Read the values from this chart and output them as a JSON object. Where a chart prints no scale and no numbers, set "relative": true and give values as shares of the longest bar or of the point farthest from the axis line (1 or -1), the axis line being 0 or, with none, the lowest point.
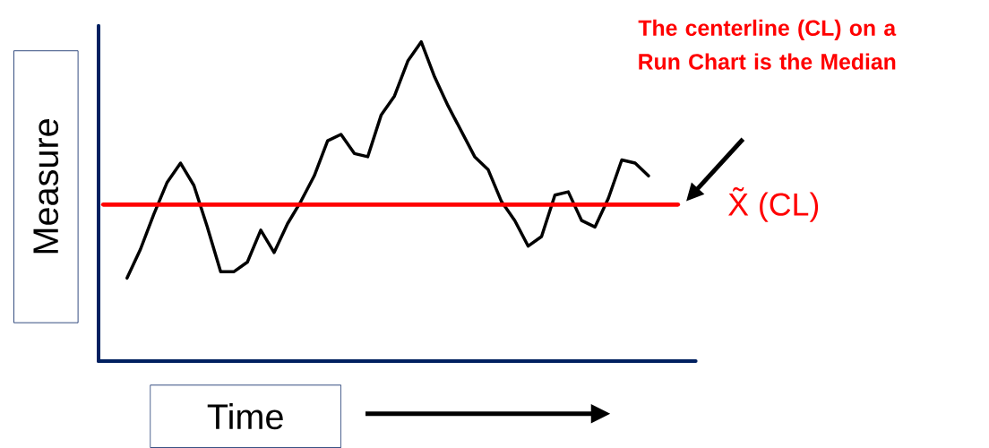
{
  "chart_data": {
    "type": "line",
    "relative": true,
    "xlabel": "Time",
    "ylabel": "Measure",
    "annotations": [
      "The centerline (CL) on a Run Chart is the Median"
    ],
    "categories": [
      null,
      null,
      null,
      null,
      null,
      null,
      null,
      null,
      null,
      null,
      null,
      null,
      null,
      null,
      null,
      null,
      null,
      null,
      null,
      null,
      null,
      null,
      null,
      null,
      null,
      null,
      null,
      null,
      null,
      null,
      null,
      null,
      null,
      null,
      null,
      null,
      null,
      null,
      null,
      null
    ],
    "series": [
      {
        "color": "#000000",
        "values": [
          0.26,
          0.35,
          0.46,
          0.56,
          0.62,
          0.55,
          0.42,
          0.28,
          0.28,
          0.31,
          0.41,
          0.34,
          0.43,
          0.5,
          0.58,
          0.69,
          0.71,
          0.65,
          0.64,
          0.77,
          0.83,
          0.94,
          1.0,
          0.89,
          0.8,
          0.72,
          0.64,
          0.6,
          0.5,
          0.44,
          0.36,
          0.39,
          0.52,
          0.53,
          0.44,
          0.42,
          0.51,
          0.63,
          0.62,
          0.58
        ]
      }
    ],
    "ref_lines": [
      {
        "axis": "y",
        "value": 0.49,
        "label": "X̃ (CL)",
        "color": "#ff0000"
      }
    ]
  }
}
